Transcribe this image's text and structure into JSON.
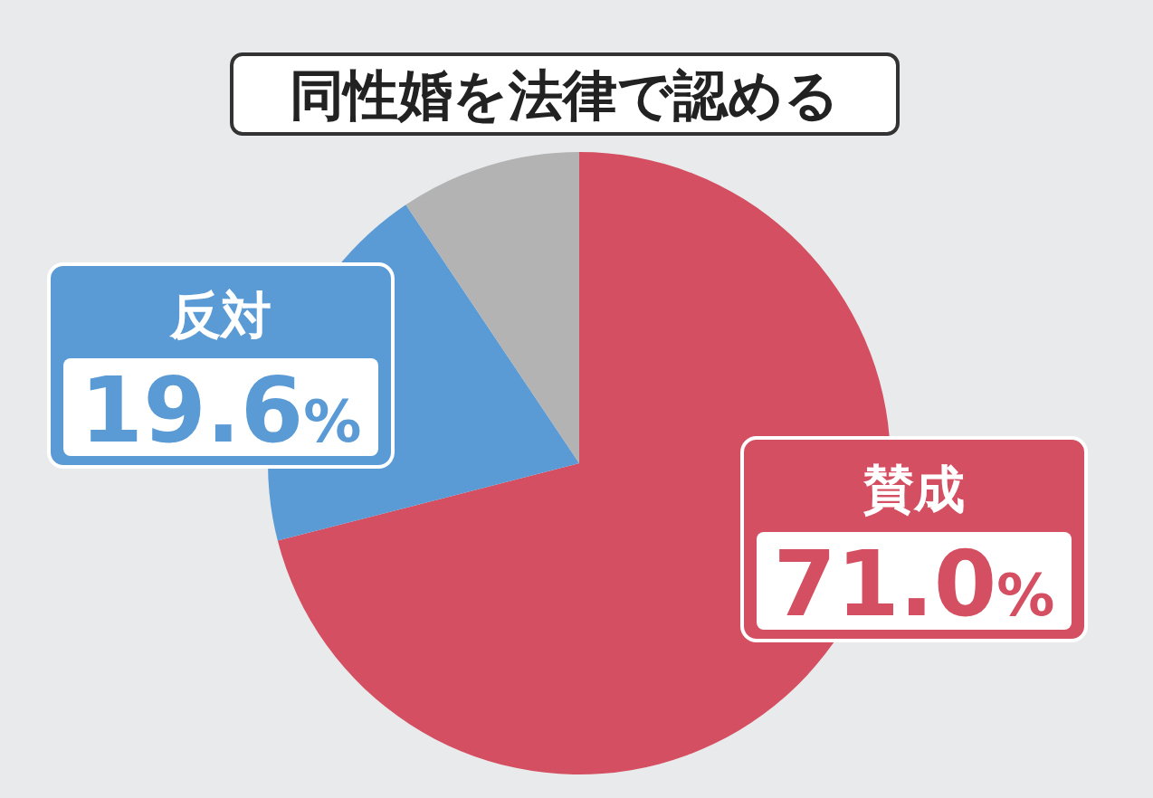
{
  "chart_data": {
    "type": "pie",
    "title": "同性婚を法律で認める",
    "categories": [
      "賛成",
      "反対",
      null
    ],
    "values": [
      71.0,
      19.6,
      9.4
    ],
    "colors": [
      "#d44f61",
      "#5b9bd5",
      "#b3b3b3"
    ],
    "value_labels": [
      "71.0%",
      "19.6%",
      null
    ]
  }
}
